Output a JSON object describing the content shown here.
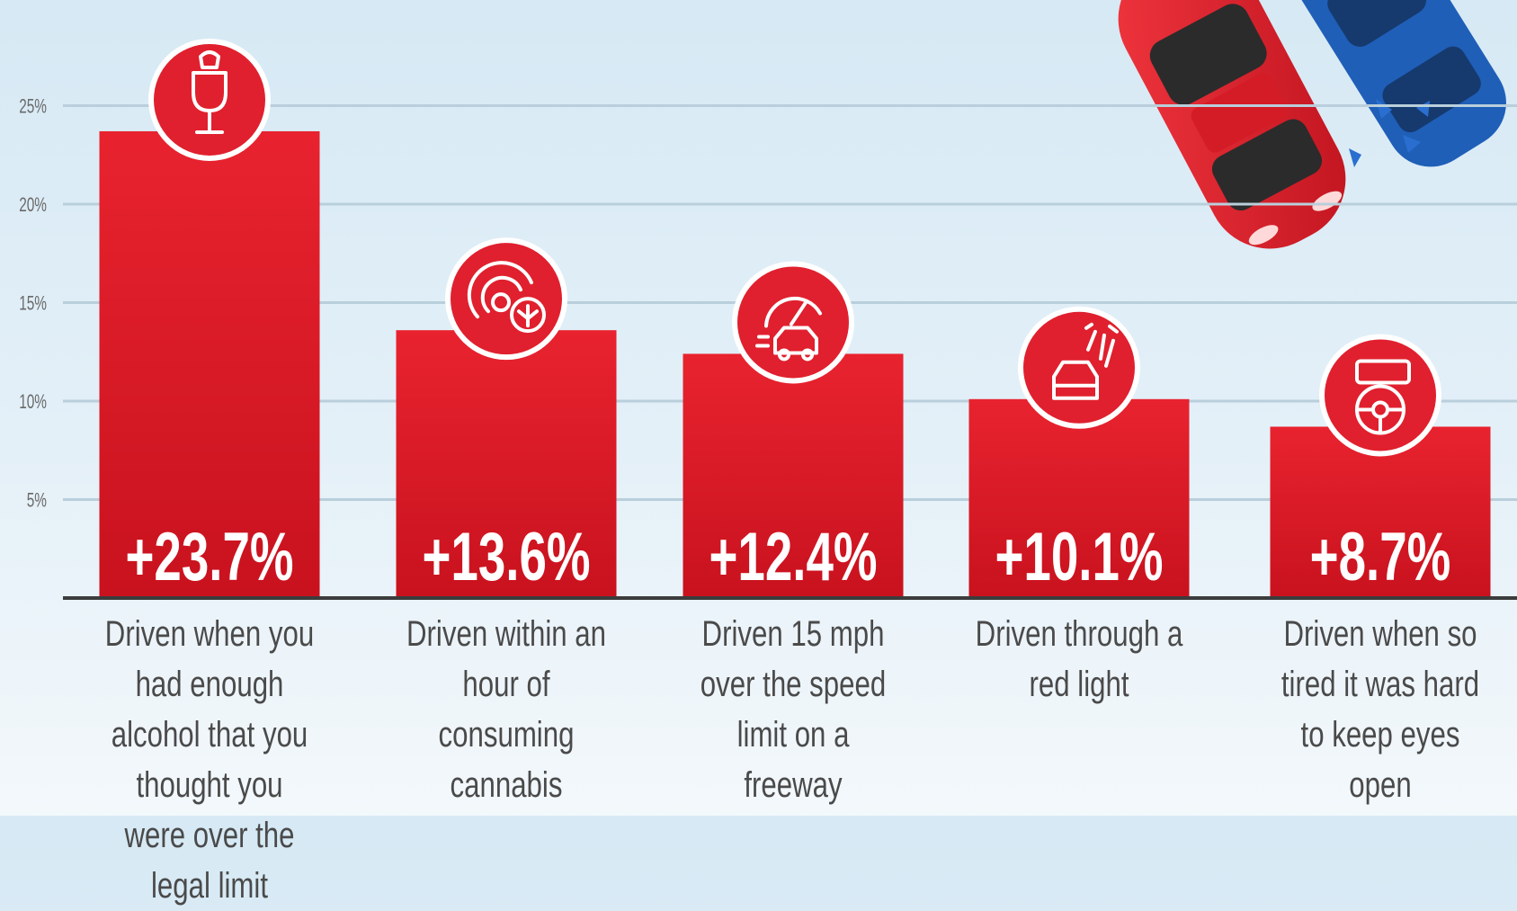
{
  "chart_data": {
    "type": "bar",
    "categories": [
      "Driven when you had enough alcohol that you thought you were over the legal limit",
      "Driven within an hour of consuming cannabis",
      "Driven 15 mph over the speed limit on a freeway",
      "Driven through a red light",
      "Driven when so tired it was hard to keep eyes open"
    ],
    "values": [
      23.7,
      13.6,
      12.4,
      10.1,
      8.7
    ],
    "value_labels": [
      "+23.7%",
      "+13.6%",
      "+12.4%",
      "+10.1%",
      "+8.7%"
    ],
    "icons": [
      "wine-glass-icon",
      "cannabis-icon",
      "speedometer-car-icon",
      "traffic-light-car-icon",
      "drowsy-driver-icon"
    ],
    "yticks": [
      5,
      10,
      15,
      20,
      25
    ],
    "ytick_labels": [
      "5%",
      "10%",
      "15%",
      "20%",
      "25%"
    ],
    "ylim": [
      0,
      25
    ],
    "grid": true,
    "colors": {
      "bar": "#e0202e",
      "bar_dark": "#b8101c",
      "circle": "#e0202e",
      "grid": "#b9cfdb",
      "axis": "#3c3c3c",
      "tick_text": "#6a6a6a",
      "label_text": "#4a4a4a",
      "value_text": "#ffffff"
    }
  }
}
